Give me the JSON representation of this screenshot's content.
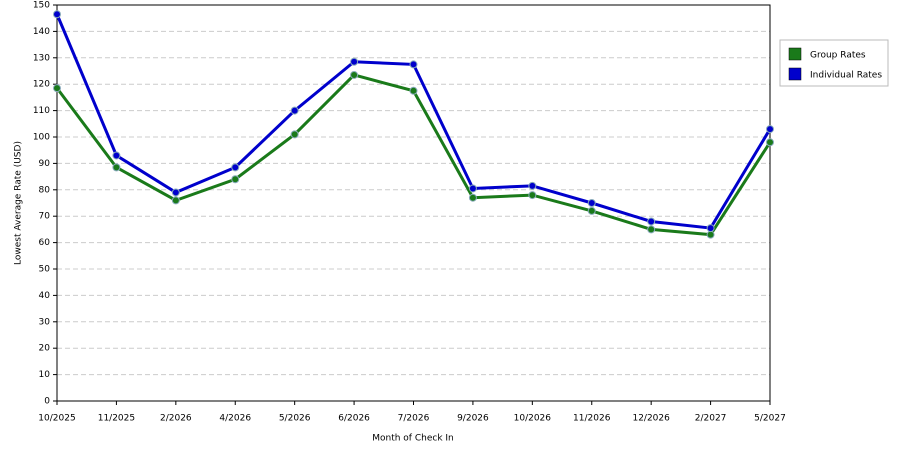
{
  "chart_data": {
    "type": "line",
    "x_label": "Month of Check In",
    "y_label": "Lowest Average Rate (USD)",
    "categories": [
      "10/2025",
      "11/2025",
      "2/2026",
      "4/2026",
      "5/2026",
      "6/2026",
      "7/2026",
      "9/2026",
      "10/2026",
      "11/2026",
      "12/2026",
      "2/2027",
      "5/2027"
    ],
    "series": [
      {
        "name": "Group Rates",
        "color": "#1a7a1a",
        "values": [
          118.5,
          88.5,
          76,
          84,
          101,
          123.5,
          117.5,
          77,
          78,
          72,
          65,
          63,
          98
        ]
      },
      {
        "name": "Individual Rates",
        "color": "#0000cc",
        "values": [
          146.5,
          93,
          79,
          88.5,
          110,
          128.5,
          127.5,
          80.5,
          81.5,
          75,
          68,
          65.5,
          103
        ]
      }
    ],
    "ylim": [
      0,
      150
    ],
    "yticks": [
      0,
      10,
      20,
      30,
      40,
      50,
      60,
      70,
      80,
      90,
      100,
      110,
      120,
      130,
      140,
      150
    ],
    "grid": true,
    "legend": "right"
  }
}
